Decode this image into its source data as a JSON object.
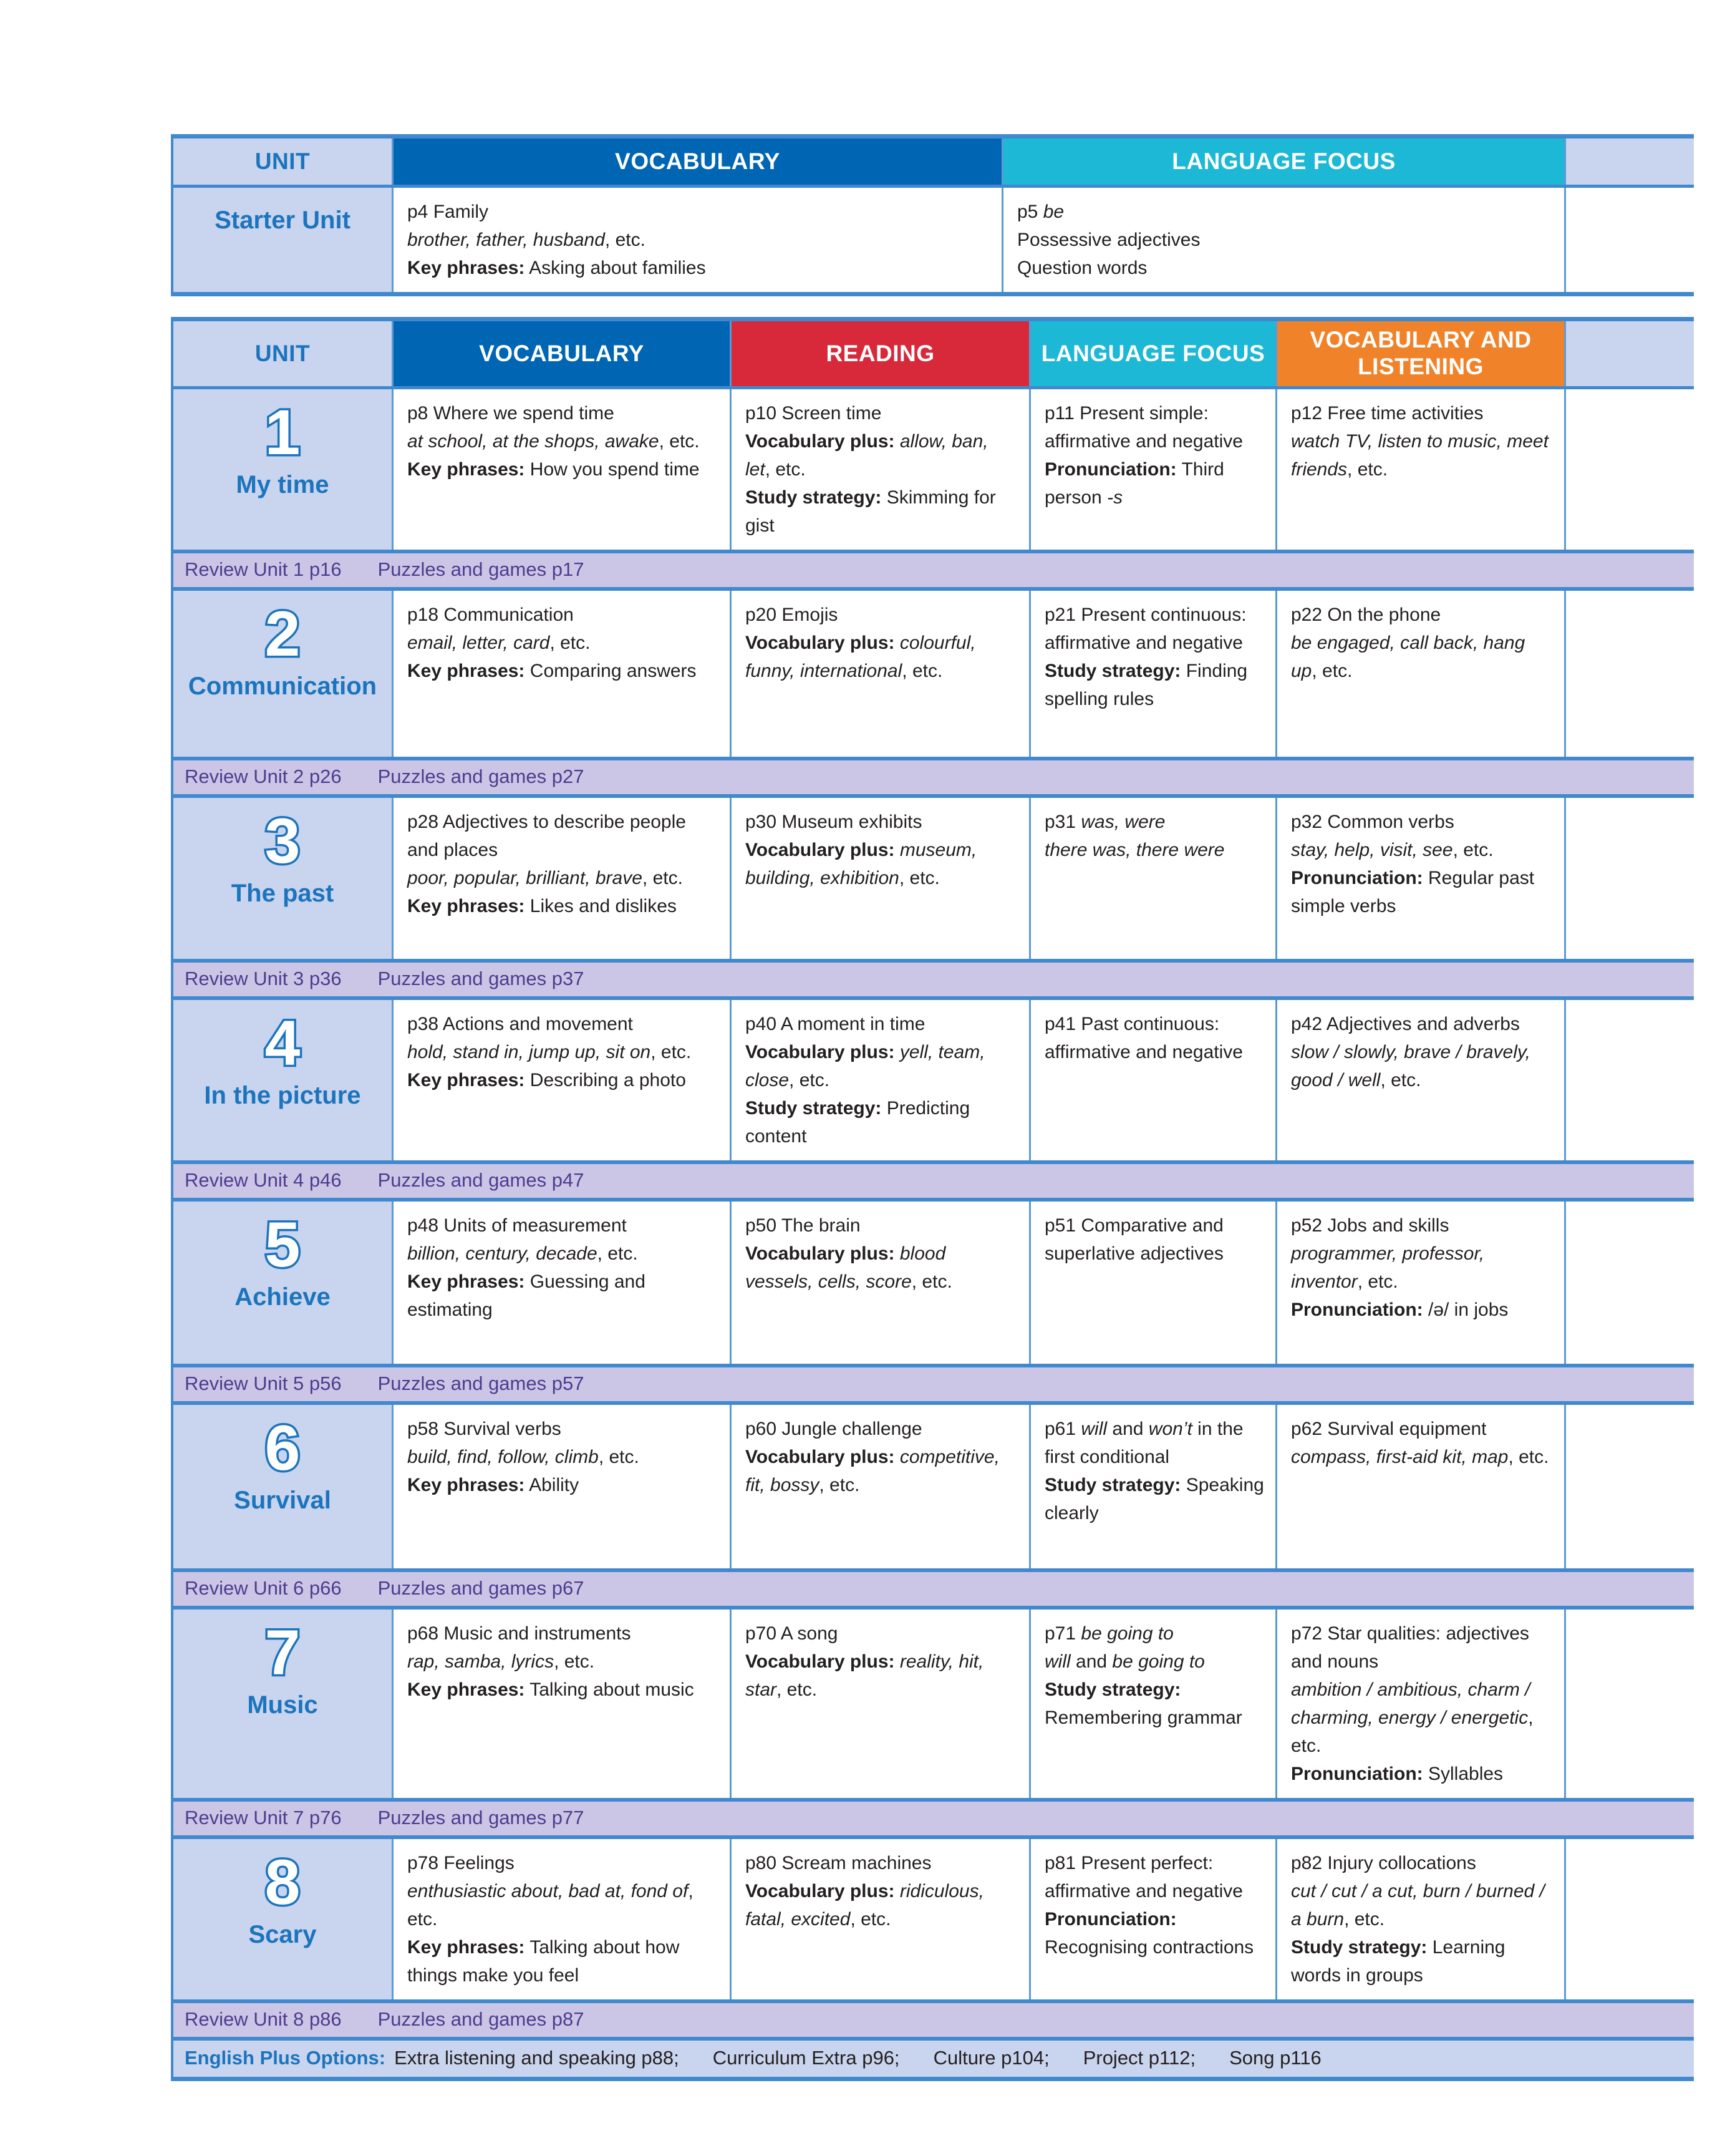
{
  "colors": {
    "vocabulary_header": "#0066b3",
    "reading_header": "#d7293a",
    "language_focus_header": "#1cb8d6",
    "vocab_listening_header": "#f0832a",
    "lavender_cell": "#c9d4ee",
    "review_band": "#ccc6e6",
    "review_text": "#4d3c8e",
    "unit_blue": "#1b74bd",
    "rule_blue": "#4189cf",
    "body_text": "#231f20"
  },
  "table1": {
    "headers": [
      {
        "label": "UNIT"
      },
      {
        "label": "VOCABULARY"
      },
      {
        "label": "LANGUAGE FOCUS"
      },
      {
        "label": ""
      }
    ],
    "starter": {
      "title": "Starter Unit",
      "vocabulary": [
        [
          [
            "p4 Family",
            ""
          ]
        ],
        [
          [
            "brother, father, husband",
            "i"
          ],
          [
            ", etc.",
            ""
          ]
        ],
        [
          [
            "Key phrases:",
            "b"
          ],
          [
            " Asking about families",
            ""
          ]
        ]
      ],
      "language_focus": [
        [
          [
            "p5 ",
            ""
          ],
          [
            "be",
            "i"
          ]
        ],
        [
          [
            "Possessive adjectives",
            ""
          ]
        ],
        [
          [
            "Question words",
            ""
          ]
        ]
      ]
    }
  },
  "table2": {
    "headers": [
      {
        "label": "UNIT"
      },
      {
        "label": "VOCABULARY"
      },
      {
        "label": "READING"
      },
      {
        "label": "LANGUAGE FOCUS"
      },
      {
        "label": "VOCABULARY AND LISTENING"
      },
      {
        "label": ""
      }
    ],
    "units": [
      {
        "number": "1",
        "name": "My time",
        "vocabulary": [
          [
            [
              "p8 Where we spend time",
              ""
            ]
          ],
          [
            [
              "at school, at the shops, awake",
              "i"
            ],
            [
              ", etc.",
              ""
            ]
          ],
          [
            [
              "Key phrases:",
              "b"
            ],
            [
              " How you spend time",
              ""
            ]
          ]
        ],
        "reading": [
          [
            [
              "p10 Screen time",
              ""
            ]
          ],
          [
            [
              "Vocabulary plus:",
              "b"
            ],
            [
              " ",
              ""
            ],
            [
              "allow, ban, let",
              "i"
            ],
            [
              ", etc.",
              ""
            ]
          ],
          [
            [
              "Study strategy:",
              "b"
            ],
            [
              " Skimming for gist",
              ""
            ]
          ]
        ],
        "language_focus": [
          [
            [
              "p11 Present simple: affirmative and negative",
              ""
            ]
          ],
          [
            [
              "Pronunciation:",
              "b"
            ],
            [
              " Third person ",
              ""
            ],
            [
              "-s",
              "i"
            ]
          ]
        ],
        "vocab_listening": [
          [
            [
              "p12 Free time activities",
              ""
            ]
          ],
          [
            [
              "watch TV, listen to music, meet friends",
              "i"
            ],
            [
              ", etc.",
              ""
            ]
          ]
        ],
        "review": {
          "left": "Review Unit 1 p16",
          "right": "Puzzles and games p17"
        }
      },
      {
        "number": "2",
        "name": "Communication",
        "vocabulary": [
          [
            [
              "p18 Communication",
              ""
            ]
          ],
          [
            [
              "email, letter, card",
              "i"
            ],
            [
              ", etc.",
              ""
            ]
          ],
          [
            [
              "Key phrases:",
              "b"
            ],
            [
              " Comparing answers",
              ""
            ]
          ]
        ],
        "reading": [
          [
            [
              "p20 Emojis",
              ""
            ]
          ],
          [
            [
              "Vocabulary plus:",
              "b"
            ],
            [
              " ",
              ""
            ],
            [
              "colourful, funny, international",
              "i"
            ],
            [
              ", etc.",
              ""
            ]
          ]
        ],
        "language_focus": [
          [
            [
              "p21 Present continuous: affirmative and negative",
              ""
            ]
          ],
          [
            [
              "Study strategy:",
              "b"
            ],
            [
              " Finding spelling rules",
              ""
            ]
          ]
        ],
        "vocab_listening": [
          [
            [
              "p22 On the phone",
              ""
            ]
          ],
          [
            [
              "be engaged, call back, hang up",
              "i"
            ],
            [
              ", etc.",
              ""
            ]
          ]
        ],
        "review": {
          "left": "Review Unit 2 p26",
          "right": "Puzzles and games p27"
        }
      },
      {
        "number": "3",
        "name": "The past",
        "vocabulary": [
          [
            [
              "p28 Adjectives to describe people and places",
              ""
            ]
          ],
          [
            [
              "poor, popular, brilliant, brave",
              "i"
            ],
            [
              ", etc.",
              ""
            ]
          ],
          [
            [
              "Key phrases:",
              "b"
            ],
            [
              " Likes and dislikes",
              ""
            ]
          ]
        ],
        "reading": [
          [
            [
              "p30 Museum exhibits",
              ""
            ]
          ],
          [
            [
              "Vocabulary plus:",
              "b"
            ],
            [
              " ",
              ""
            ],
            [
              "museum, building, exhibition",
              "i"
            ],
            [
              ", etc.",
              ""
            ]
          ]
        ],
        "language_focus": [
          [
            [
              "p31 ",
              ""
            ],
            [
              "was, were",
              "i"
            ]
          ],
          [
            [
              "there was, there were",
              "i"
            ]
          ]
        ],
        "vocab_listening": [
          [
            [
              "p32 Common verbs",
              ""
            ]
          ],
          [
            [
              "stay, help, visit, see",
              "i"
            ],
            [
              ", etc.",
              ""
            ]
          ],
          [
            [
              "Pronunciation:",
              "b"
            ],
            [
              " Regular past simple verbs",
              ""
            ]
          ]
        ],
        "review": {
          "left": "Review Unit 3 p36",
          "right": "Puzzles and games p37"
        }
      },
      {
        "number": "4",
        "name": "In the picture",
        "vocabulary": [
          [
            [
              "p38 Actions and movement",
              ""
            ]
          ],
          [
            [
              "hold, stand in, jump up, sit on",
              "i"
            ],
            [
              ", etc.",
              ""
            ]
          ],
          [
            [
              "Key phrases:",
              "b"
            ],
            [
              " Describing a photo",
              ""
            ]
          ]
        ],
        "reading": [
          [
            [
              "p40 A moment in time",
              ""
            ]
          ],
          [
            [
              "Vocabulary plus:",
              "b"
            ],
            [
              " ",
              ""
            ],
            [
              "yell, team, close",
              "i"
            ],
            [
              ", etc.",
              ""
            ]
          ],
          [
            [
              "Study strategy:",
              "b"
            ],
            [
              " Predicting content",
              ""
            ]
          ]
        ],
        "language_focus": [
          [
            [
              "p41 Past continuous: affirmative and negative",
              ""
            ]
          ]
        ],
        "vocab_listening": [
          [
            [
              "p42 Adjectives and adverbs",
              ""
            ]
          ],
          [
            [
              "slow / slowly, brave / bravely, good / well",
              "i"
            ],
            [
              ", etc.",
              ""
            ]
          ]
        ],
        "review": {
          "left": "Review Unit 4 p46",
          "right": "Puzzles and games p47"
        }
      },
      {
        "number": "5",
        "name": "Achieve",
        "vocabulary": [
          [
            [
              "p48 Units of measurement",
              ""
            ]
          ],
          [
            [
              "billion, century, decade",
              "i"
            ],
            [
              ", etc.",
              ""
            ]
          ],
          [
            [
              "Key phrases:",
              "b"
            ],
            [
              " Guessing and estimating",
              ""
            ]
          ]
        ],
        "reading": [
          [
            [
              "p50 The brain",
              ""
            ]
          ],
          [
            [
              "Vocabulary plus:",
              "b"
            ],
            [
              " ",
              ""
            ],
            [
              "blood vessels, cells, score",
              "i"
            ],
            [
              ", etc.",
              ""
            ]
          ]
        ],
        "language_focus": [
          [
            [
              "p51 Comparative and superlative adjectives",
              ""
            ]
          ]
        ],
        "vocab_listening": [
          [
            [
              "p52 Jobs and skills",
              ""
            ]
          ],
          [
            [
              "programmer, professor, inventor",
              "i"
            ],
            [
              ", etc.",
              ""
            ]
          ],
          [
            [
              "Pronunciation:",
              "b"
            ],
            [
              " /ə/ in jobs",
              ""
            ]
          ]
        ],
        "review": {
          "left": "Review Unit 5 p56",
          "right": "Puzzles and games p57"
        }
      },
      {
        "number": "6",
        "name": "Survival",
        "vocabulary": [
          [
            [
              "p58 Survival verbs",
              ""
            ]
          ],
          [
            [
              "build, find, follow, climb",
              "i"
            ],
            [
              ", etc.",
              ""
            ]
          ],
          [
            [
              "Key phrases:",
              "b"
            ],
            [
              " Ability",
              ""
            ]
          ]
        ],
        "reading": [
          [
            [
              "p60 Jungle challenge",
              ""
            ]
          ],
          [
            [
              "Vocabulary plus:",
              "b"
            ],
            [
              " ",
              ""
            ],
            [
              "competitive, fit, bossy",
              "i"
            ],
            [
              ", etc.",
              ""
            ]
          ]
        ],
        "language_focus": [
          [
            [
              "p61 ",
              ""
            ],
            [
              "will",
              "i"
            ],
            [
              " and ",
              ""
            ],
            [
              "won’t",
              "i"
            ],
            [
              " in the first conditional",
              ""
            ]
          ],
          [
            [
              "Study strategy:",
              "b"
            ],
            [
              " Speaking clearly",
              ""
            ]
          ]
        ],
        "vocab_listening": [
          [
            [
              "p62 Survival equipment",
              ""
            ]
          ],
          [
            [
              "compass, first-aid kit, map",
              "i"
            ],
            [
              ", etc.",
              ""
            ]
          ]
        ],
        "review": {
          "left": "Review Unit 6 p66",
          "right": "Puzzles and games p67"
        }
      },
      {
        "number": "7",
        "name": "Music",
        "vocabulary": [
          [
            [
              "p68 Music and instruments",
              ""
            ]
          ],
          [
            [
              "rap, samba, lyrics",
              "i"
            ],
            [
              ", etc.",
              ""
            ]
          ],
          [
            [
              "Key phrases:",
              "b"
            ],
            [
              " Talking about music",
              ""
            ]
          ]
        ],
        "reading": [
          [
            [
              "p70 A song",
              ""
            ]
          ],
          [
            [
              "Vocabulary plus:",
              "b"
            ],
            [
              " ",
              ""
            ],
            [
              "reality, hit, star",
              "i"
            ],
            [
              ", etc.",
              ""
            ]
          ]
        ],
        "language_focus": [
          [
            [
              "p71 ",
              ""
            ],
            [
              "be going to",
              "i"
            ]
          ],
          [
            [
              "will",
              "i"
            ],
            [
              " and ",
              ""
            ],
            [
              "be going to",
              "i"
            ]
          ],
          [
            [
              "Study strategy:",
              "b"
            ],
            [
              " Remembering grammar",
              ""
            ]
          ]
        ],
        "vocab_listening": [
          [
            [
              "p72 Star qualities: adjectives and nouns",
              ""
            ]
          ],
          [
            [
              "ambition / ambitious, charm / charming, energy / energetic",
              "i"
            ],
            [
              ", etc.",
              ""
            ]
          ],
          [
            [
              "Pronunciation:",
              "b"
            ],
            [
              " Syllables",
              ""
            ]
          ]
        ],
        "review": {
          "left": "Review Unit 7 p76",
          "right": "Puzzles and games p77"
        }
      },
      {
        "number": "8",
        "name": "Scary",
        "vocabulary": [
          [
            [
              "p78 Feelings",
              ""
            ]
          ],
          [
            [
              "enthusiastic about, bad at, fond of",
              "i"
            ],
            [
              ", etc.",
              ""
            ]
          ],
          [
            [
              "Key phrases:",
              "b"
            ],
            [
              " Talking about how things make you feel",
              ""
            ]
          ]
        ],
        "reading": [
          [
            [
              "p80 Scream machines",
              ""
            ]
          ],
          [
            [
              "Vocabulary plus:",
              "b"
            ],
            [
              " ",
              ""
            ],
            [
              "ridiculous, fatal, excited",
              "i"
            ],
            [
              ", etc.",
              ""
            ]
          ]
        ],
        "language_focus": [
          [
            [
              "p81 Present perfect: affirmative and negative",
              ""
            ]
          ],
          [
            [
              "Pronunciation:",
              "b"
            ],
            [
              " Recognising contractions",
              ""
            ]
          ]
        ],
        "vocab_listening": [
          [
            [
              "p82 Injury collocations",
              ""
            ]
          ],
          [
            [
              "cut / cut / a cut, burn / burned / a burn",
              "i"
            ],
            [
              ", etc.",
              ""
            ]
          ],
          [
            [
              "Study strategy:",
              "b"
            ],
            [
              " Learning words in groups",
              ""
            ]
          ]
        ],
        "review": {
          "left": "Review Unit 8 p86",
          "right": "Puzzles and games p87"
        }
      }
    ]
  },
  "footer": {
    "label": "English Plus Options:",
    "items": [
      "Extra listening and speaking p88;",
      "Curriculum Extra p96;",
      "Culture p104;",
      "Project p112;",
      "Song p116"
    ]
  }
}
